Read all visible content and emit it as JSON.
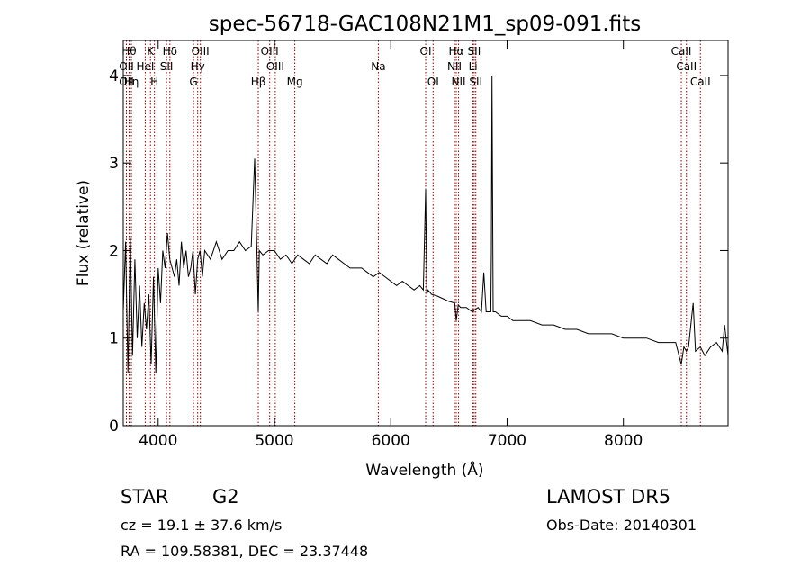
{
  "chart_data": {
    "type": "line",
    "title": "spec-56718-GAC108N21M1_sp09-091.fits",
    "xlabel": "Wavelength (Å)",
    "ylabel": "Flux (relative)",
    "xlim": [
      3700,
      8900
    ],
    "ylim": [
      0,
      4.4
    ],
    "x_ticks": [
      "4000",
      "5000",
      "6000",
      "7000",
      "8000"
    ],
    "y_ticks": [
      "0",
      "1",
      "2",
      "3",
      "4"
    ],
    "x_tick_values": [
      4000,
      5000,
      6000,
      7000,
      8000
    ],
    "y_tick_values": [
      0,
      1,
      2,
      3,
      4
    ],
    "grid": false,
    "line_color": "#000000",
    "marker_color": "#8b0000",
    "series": [
      {
        "x": [
          3700,
          3720,
          3740,
          3760,
          3780,
          3800,
          3820,
          3840,
          3860,
          3880,
          3900,
          3920,
          3940,
          3960,
          3980,
          4000,
          4020,
          4040,
          4060,
          4080,
          4100,
          4120,
          4140,
          4160,
          4180,
          4200,
          4220,
          4240,
          4260,
          4280,
          4300,
          4320,
          4340,
          4360,
          4380,
          4400,
          4450,
          4500,
          4550,
          4600,
          4650,
          4700,
          4750,
          4800,
          4830,
          4850,
          4861,
          4870,
          4900,
          4950,
          5000,
          5050,
          5100,
          5150,
          5200,
          5250,
          5300,
          5350,
          5400,
          5450,
          5500,
          5550,
          5600,
          5650,
          5700,
          5750,
          5800,
          5850,
          5900,
          5950,
          6000,
          6050,
          6100,
          6150,
          6200,
          6250,
          6280,
          6300,
          6310,
          6320,
          6350,
          6400,
          6450,
          6500,
          6550,
          6563,
          6580,
          6600,
          6650,
          6700,
          6750,
          6780,
          6800,
          6820,
          6840,
          6860,
          6865,
          6870,
          6880,
          6900,
          6950,
          7000,
          7050,
          7100,
          7200,
          7300,
          7400,
          7500,
          7600,
          7700,
          7800,
          7900,
          8000,
          8100,
          8200,
          8300,
          8400,
          8450,
          8498,
          8520,
          8542,
          8560,
          8600,
          8620,
          8662,
          8700,
          8750,
          8800,
          8850,
          8870,
          8900
        ],
        "y": [
          1.3,
          2.1,
          0.6,
          2.15,
          0.8,
          1.9,
          1.0,
          1.6,
          0.9,
          1.4,
          1.1,
          1.5,
          0.7,
          1.7,
          0.6,
          1.8,
          1.4,
          2.0,
          1.8,
          2.2,
          1.9,
          1.8,
          1.7,
          1.9,
          1.6,
          2.1,
          1.8,
          2.0,
          1.7,
          1.8,
          2.0,
          1.5,
          1.9,
          2.0,
          1.7,
          2.0,
          1.9,
          2.1,
          1.9,
          2.0,
          2.0,
          2.1,
          2.0,
          2.05,
          3.05,
          1.95,
          1.3,
          2.0,
          1.95,
          2.0,
          2.0,
          1.9,
          1.95,
          1.85,
          1.95,
          1.9,
          1.85,
          1.95,
          1.9,
          1.85,
          1.95,
          1.9,
          1.85,
          1.8,
          1.8,
          1.8,
          1.75,
          1.7,
          1.75,
          1.7,
          1.65,
          1.6,
          1.65,
          1.6,
          1.55,
          1.6,
          1.55,
          2.7,
          1.5,
          1.55,
          1.5,
          1.48,
          1.45,
          1.42,
          1.4,
          1.2,
          1.38,
          1.35,
          1.35,
          1.3,
          1.35,
          1.3,
          1.75,
          1.3,
          1.3,
          1.3,
          2.0,
          4.0,
          1.3,
          1.3,
          1.25,
          1.25,
          1.2,
          1.2,
          1.2,
          1.15,
          1.15,
          1.1,
          1.1,
          1.05,
          1.05,
          1.05,
          1.0,
          1.0,
          1.0,
          0.95,
          0.95,
          0.95,
          0.7,
          0.9,
          0.85,
          0.9,
          1.4,
          0.85,
          0.9,
          0.8,
          0.9,
          0.95,
          0.85,
          1.15,
          0.8
        ]
      }
    ],
    "lines": [
      {
        "x": 3750,
        "label": "Hθ",
        "row": 0
      },
      {
        "x": 3727,
        "label": "OII",
        "row": 1
      },
      {
        "x": 3727,
        "label": "OII",
        "row": 2
      },
      {
        "x": 3770,
        "label": "Hη",
        "row": 2
      },
      {
        "x": 3934,
        "label": "K",
        "row": 0
      },
      {
        "x": 3889,
        "label": "HeI",
        "row": 1
      },
      {
        "x": 3968,
        "label": "H",
        "row": 2
      },
      {
        "x": 4101,
        "label": "Hδ",
        "row": 0
      },
      {
        "x": 4072,
        "label": "SII",
        "row": 1
      },
      {
        "x": 4363,
        "label": "OIII",
        "row": 0
      },
      {
        "x": 4340,
        "label": "Hγ",
        "row": 1
      },
      {
        "x": 4304,
        "label": "G",
        "row": 2
      },
      {
        "x": 4959,
        "label": "OIII",
        "row": 0
      },
      {
        "x": 5007,
        "label": "OIII",
        "row": 1
      },
      {
        "x": 4861,
        "label": "Hβ",
        "row": 2
      },
      {
        "x": 5175,
        "label": "Mg",
        "row": 2
      },
      {
        "x": 5893,
        "label": "Na",
        "row": 1
      },
      {
        "x": 6300,
        "label": "OI",
        "row": 0
      },
      {
        "x": 6364,
        "label": "OI",
        "row": 2
      },
      {
        "x": 6563,
        "label": "Hα",
        "row": 0
      },
      {
        "x": 6548,
        "label": "NII",
        "row": 1
      },
      {
        "x": 6583,
        "label": "NII",
        "row": 2
      },
      {
        "x": 6717,
        "label": "SII",
        "row": 0
      },
      {
        "x": 6707,
        "label": "Li",
        "row": 1
      },
      {
        "x": 6731,
        "label": "SII",
        "row": 2
      },
      {
        "x": 8498,
        "label": "CaII",
        "row": 0
      },
      {
        "x": 8542,
        "label": "CaII",
        "row": 1
      },
      {
        "x": 8662,
        "label": "CaII",
        "row": 2
      }
    ]
  },
  "info": {
    "object_class": "STAR",
    "subclass": "G2",
    "survey": "LAMOST DR5",
    "cz_label": "cz = ",
    "cz_value": "19.1",
    "pm": "±",
    "cz_err": "37.6 km/s",
    "obs_date": "Obs-Date: 20140301",
    "ra_dec": "RA = 109.58381, DEC =  23.37448"
  }
}
